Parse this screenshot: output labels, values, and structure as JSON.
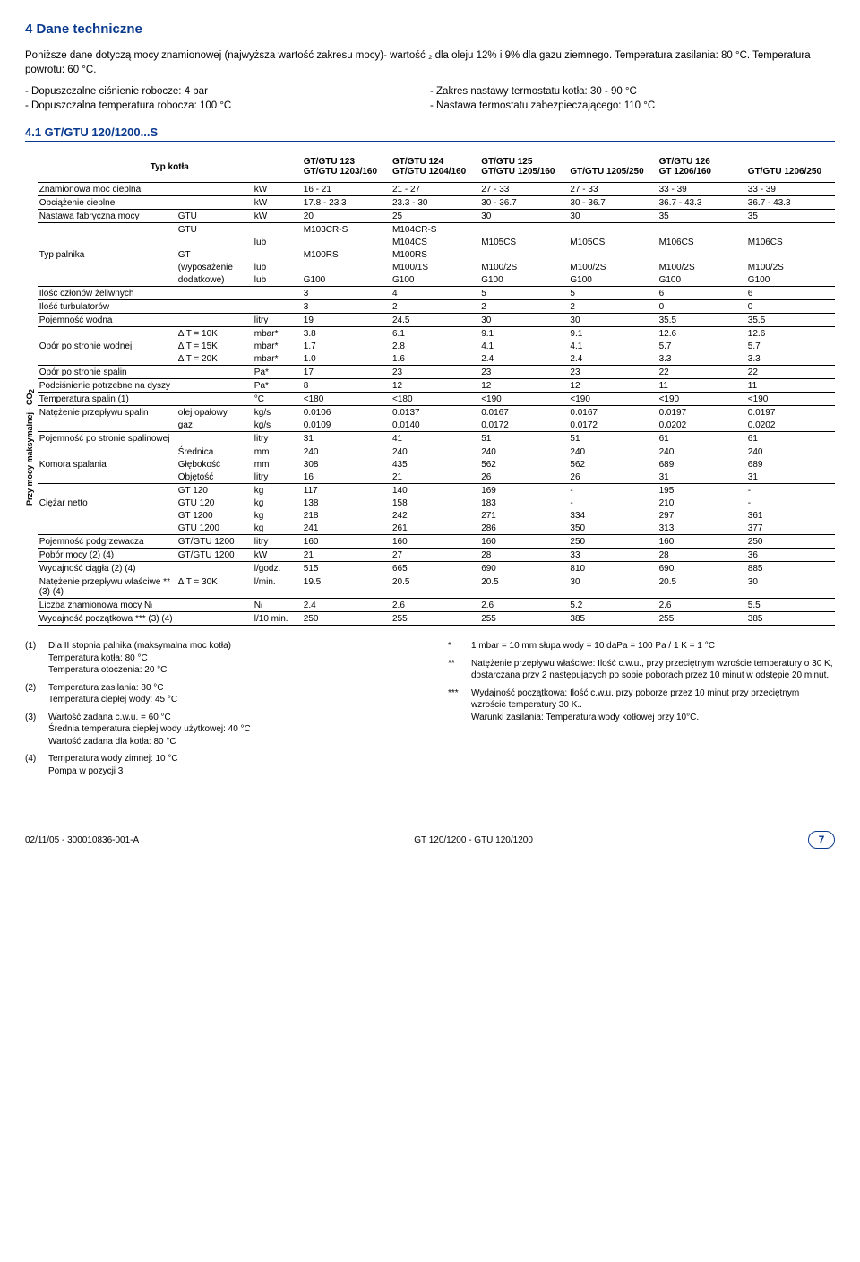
{
  "header": {
    "section_no_title": "4  Dane techniczne",
    "intro": "Poniższe dane dotyczą mocy znamionowej (najwyższa wartość zakresu mocy)- wartość ₂ dla oleju 12% i 9% dla gazu ziemnego. Temperatura zasilania: 80 °C. Temperatura powrotu: 60 °C.",
    "spec_left": [
      "- Dopuszczalne ciśnienie robocze: 4 bar",
      "- Dopuszczalna temperatura robocza: 100 °C"
    ],
    "spec_right": [
      "- Zakres nastawy termostatu kotła: 30 - 90 °C",
      "- Nastawa termostatu zabezpieczającego: 110 °C"
    ],
    "subsection": "4.1    GT/GTU 120/1200...S"
  },
  "table": {
    "type_label": "Typ kotła",
    "head_cols": [
      "GT/GTU 123\nGT/GTU 1203/160",
      "GT/GTU 124\nGT/GTU 1204/160",
      "GT/GTU 125\nGT/GTU 1205/160",
      "\nGT/GTU 1205/250",
      "GT/GTU 126\nGT 1206/160",
      "\nGT/GTU 1206/250"
    ],
    "vertical_label": "Przy mocy maksymalnej - CO",
    "rows": [
      {
        "l": "Znamionowa moc cieplna",
        "c2": "",
        "c3": "kW",
        "v": [
          "16 - 21",
          "21 - 27",
          "27 - 33",
          "27 - 33",
          "33 - 39",
          "33 - 39"
        ]
      },
      {
        "l": "Obciążenie cieplne",
        "c2": "",
        "c3": "kW",
        "v": [
          "17.8 - 23.3",
          "23.3 - 30",
          "30 - 36.7",
          "30 - 36.7",
          "36.7 - 43.3",
          "36.7 - 43.3"
        ]
      },
      {
        "l": "Nastawa fabryczna mocy",
        "c2": "GTU",
        "c3": "kW",
        "v": [
          "20",
          "25",
          "30",
          "30",
          "35",
          "35"
        ]
      },
      {
        "l": "",
        "c2": "GTU",
        "c3": "",
        "v": [
          "M103CR-S",
          "M104CR-S",
          "",
          "",
          "",
          ""
        ]
      },
      {
        "l": "",
        "c2": "",
        "c3": "lub",
        "v": [
          "",
          "M104CS",
          "M105CS",
          "M105CS",
          "M106CS",
          "M106CS"
        ]
      },
      {
        "l": "Typ palnika",
        "c2": "GT",
        "c3": "",
        "v": [
          "M100RS",
          "M100RS",
          "",
          "",
          "",
          ""
        ]
      },
      {
        "l": "",
        "c2": "(wyposażenie",
        "c3": "lub",
        "v": [
          "",
          "M100/1S",
          "M100/2S",
          "M100/2S",
          "M100/2S",
          "M100/2S"
        ]
      },
      {
        "l": "",
        "c2": "dodatkowe)",
        "c3": "lub",
        "v": [
          "G100",
          "G100",
          "G100",
          "G100",
          "G100",
          "G100"
        ]
      },
      {
        "l": "Ilośc członów żeliwnych",
        "c2": "",
        "c3": "",
        "v": [
          "3",
          "4",
          "5",
          "5",
          "6",
          "6"
        ]
      },
      {
        "l": "Ilość turbulatorów",
        "c2": "",
        "c3": "",
        "v": [
          "3",
          "2",
          "2",
          "2",
          "0",
          "0"
        ]
      },
      {
        "l": "Pojemność wodna",
        "c2": "",
        "c3": "litry",
        "v": [
          "19",
          "24.5",
          "30",
          "30",
          "35.5",
          "35.5"
        ]
      },
      {
        "l": "",
        "c2": "Δ T = 10K",
        "c3": "mbar*",
        "v": [
          "3.8",
          "6.1",
          "9.1",
          "9.1",
          "12.6",
          "12.6"
        ]
      },
      {
        "l": "Opór po stronie wodnej",
        "c2": "Δ T = 15K",
        "c3": "mbar*",
        "v": [
          "1.7",
          "2.8",
          "4.1",
          "4.1",
          "5.7",
          "5.7"
        ]
      },
      {
        "l": "",
        "c2": "Δ T = 20K",
        "c3": "mbar*",
        "v": [
          "1.0",
          "1.6",
          "2.4",
          "2.4",
          "3.3",
          "3.3"
        ]
      },
      {
        "l": "Opór po stronie spalin",
        "c2": "",
        "c3": "Pa*",
        "v": [
          "17",
          "23",
          "23",
          "23",
          "22",
          "22"
        ]
      },
      {
        "l": "Podciśnienie potrzebne na dyszy",
        "c2": "",
        "c3": "Pa*",
        "v": [
          "8",
          "12",
          "12",
          "12",
          "11",
          "11"
        ]
      },
      {
        "l": "Temperatura spalin (1)",
        "c2": "",
        "c3": "°C",
        "v": [
          "<180",
          "<180",
          "<190",
          "<190",
          "<190",
          "<190"
        ]
      },
      {
        "l": "Natężenie przepływu spalin",
        "c2": "olej opałowy",
        "c3": "kg/s",
        "v": [
          "0.0106",
          "0.0137",
          "0.0167",
          "0.0167",
          "0.0197",
          "0.0197"
        ]
      },
      {
        "l": "",
        "c2": "gaz",
        "c3": "kg/s",
        "v": [
          "0.0109",
          "0.0140",
          "0.0172",
          "0.0172",
          "0.0202",
          "0.0202"
        ]
      },
      {
        "l": "Pojemność po stronie spalinowej",
        "c2": "",
        "c3": "litry",
        "v": [
          "31",
          "41",
          "51",
          "51",
          "61",
          "61"
        ]
      },
      {
        "l": "",
        "c2": "Średnica",
        "c3": "mm",
        "v": [
          "240",
          "240",
          "240",
          "240",
          "240",
          "240"
        ]
      },
      {
        "l": "Komora spalania",
        "c2": "Głębokość",
        "c3": "mm",
        "v": [
          "308",
          "435",
          "562",
          "562",
          "689",
          "689"
        ]
      },
      {
        "l": "",
        "c2": "Objętość",
        "c3": "litry",
        "v": [
          "16",
          "21",
          "26",
          "26",
          "31",
          "31"
        ]
      },
      {
        "l": "",
        "c2": "GT 120",
        "c3": "kg",
        "v": [
          "117",
          "140",
          "169",
          "-",
          "195",
          "-"
        ]
      },
      {
        "l": "Ciężar netto",
        "c2": "GTU 120",
        "c3": "kg",
        "v": [
          "138",
          "158",
          "183",
          "-",
          "210",
          "-"
        ]
      },
      {
        "l": "",
        "c2": "GT 1200",
        "c3": "kg",
        "v": [
          "218",
          "242",
          "271",
          "334",
          "297",
          "361"
        ]
      },
      {
        "l": "",
        "c2": "GTU 1200",
        "c3": "kg",
        "v": [
          "241",
          "261",
          "286",
          "350",
          "313",
          "377"
        ]
      },
      {
        "l": "Pojemność podgrzewacza",
        "c2": "GT/GTU 1200",
        "c3": "litry",
        "v": [
          "160",
          "160",
          "160",
          "250",
          "160",
          "250"
        ]
      },
      {
        "l": "Pobór mocy (2) (4)",
        "c2": "GT/GTU 1200",
        "c3": "kW",
        "v": [
          "21",
          "27",
          "28",
          "33",
          "28",
          "36"
        ]
      },
      {
        "l": "Wydajność ciągła (2) (4)",
        "c2": "",
        "c3": "l/godz.",
        "v": [
          "515",
          "665",
          "690",
          "810",
          "690",
          "885"
        ]
      },
      {
        "l": "Natężenie przepływu właściwe ** (3) (4)",
        "c2": "Δ T = 30K",
        "c3": "l/min.",
        "v": [
          "19.5",
          "20.5",
          "20.5",
          "30",
          "20.5",
          "30"
        ]
      },
      {
        "l": "Liczba znamionowa mocy Nₗ",
        "c2": "",
        "c3": "Nₗ",
        "v": [
          "2.4",
          "2.6",
          "2.6",
          "5.2",
          "2.6",
          "5.5"
        ]
      },
      {
        "l": "Wydajność początkowa *** (3) (4)",
        "c2": "",
        "c3": "l/10 min.",
        "v": [
          "250",
          "255",
          "255",
          "385",
          "255",
          "385"
        ]
      }
    ],
    "row_group_starts": [
      0,
      1,
      2,
      3,
      8,
      9,
      10,
      11,
      14,
      15,
      16,
      17,
      19,
      20,
      23,
      27,
      28,
      29,
      30,
      31,
      32
    ],
    "vlabel_rows": [
      11,
      12,
      13,
      14,
      15,
      16,
      17,
      18
    ]
  },
  "footnotes": {
    "left": [
      {
        "mk": "(1)",
        "txt": "Dla II stopnia palnika (maksymalna moc kotła)\nTemperatura kotła: 80 °C\nTemperatura otoczenia: 20 °C"
      },
      {
        "mk": "(2)",
        "txt": "Temperatura zasilania: 80 °C\nTemperatura ciepłej wody: 45 °C"
      },
      {
        "mk": "(3)",
        "txt": "Wartość zadana c.w.u. = 60 °C\nŚrednia temperatura ciepłej wody użytkowej: 40 °C\nWartość zadana dla kotła: 80 °C"
      },
      {
        "mk": "(4)",
        "txt": "Temperatura wody zimnej: 10 °C\nPompa w pozycji 3"
      }
    ],
    "right": [
      {
        "mk": "*",
        "txt": "1 mbar = 10 mm słupa wody = 10 daPa = 100 Pa / 1 K = 1 °C"
      },
      {
        "mk": "**",
        "txt": "Natężenie przepływu właściwe: Ilość c.w.u., przy przeciętnym wzroście temperatury o 30 K, dostarczana przy 2 następujących po sobie poborach przez 10 minut w odstępie 20 minut."
      },
      {
        "mk": "***",
        "txt": "Wydajność początkowa: Ilość c.w.u. przy poborze przez 10 minut przy przeciętnym wzroście temperatury 30 K..\nWarunki zasilania: Temperatura wody kotłowej przy 10°C."
      }
    ]
  },
  "footer": {
    "left": "02/11/05 - 300010836-001-A",
    "center": "GT 120/1200 - GTU 120/1200",
    "page": "7"
  }
}
